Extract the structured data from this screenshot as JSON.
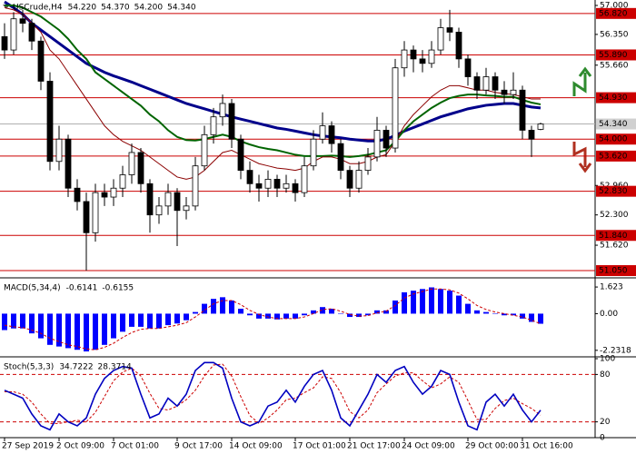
{
  "chart_data": [
    {
      "type": "candlestick",
      "title": "USCrude,H4",
      "readouts": [
        {
          "value": 54.22,
          "label": "54.220"
        },
        {
          "value": 54.37,
          "label": "54.370"
        },
        {
          "value": 54.2,
          "label": "54.200"
        },
        {
          "value": 54.34,
          "label": "54.340"
        }
      ],
      "categories": [
        "27 Sep 2019",
        null,
        null,
        null,
        null,
        null,
        "2 Oct 09:00",
        null,
        null,
        null,
        null,
        null,
        "7 Oct 01:00",
        null,
        null,
        null,
        null,
        null,
        null,
        "9 Oct 17:00",
        null,
        null,
        null,
        null,
        null,
        "14 Oct 09:00",
        null,
        null,
        null,
        null,
        null,
        null,
        "17 Oct 01:00",
        null,
        null,
        null,
        null,
        null,
        "21 Oct 17:00",
        null,
        null,
        null,
        null,
        null,
        "24 Oct 09:00",
        null,
        null,
        null,
        null,
        null,
        null,
        "29 Oct 00:00",
        null,
        null,
        null,
        null,
        null,
        "31 Oct 16:00",
        null,
        null
      ],
      "open": [
        56.3,
        56.0,
        56.7,
        56.6,
        56.2,
        55.3,
        53.5,
        54.0,
        52.9,
        52.6,
        51.9,
        52.8,
        52.7,
        52.9,
        53.2,
        53.7,
        53.0,
        52.3,
        52.5,
        52.8,
        52.4,
        52.5,
        53.4,
        54.1,
        54.5,
        54.8,
        54.0,
        53.3,
        53.0,
        52.9,
        53.1,
        52.9,
        53.0,
        52.8,
        53.4,
        54.0,
        54.3,
        53.9,
        53.3,
        52.9,
        53.3,
        53.6,
        54.2,
        53.8,
        55.6,
        56.0,
        55.8,
        55.7,
        56.0,
        56.5,
        56.4,
        55.8,
        55.4,
        55.1,
        55.4,
        55.1,
        55.0,
        55.1,
        54.2,
        54.22
      ],
      "high": [
        56.6,
        56.85,
        56.9,
        56.7,
        56.3,
        55.5,
        54.3,
        54.1,
        53.1,
        52.8,
        53.0,
        53.0,
        53.1,
        53.4,
        53.9,
        53.8,
        53.1,
        52.7,
        53.0,
        52.9,
        52.7,
        53.6,
        54.3,
        54.7,
        55.0,
        54.9,
        54.1,
        53.5,
        53.2,
        53.3,
        53.2,
        53.2,
        53.1,
        53.6,
        54.2,
        54.6,
        54.4,
        54.0,
        53.4,
        53.5,
        53.8,
        54.5,
        54.3,
        55.8,
        56.2,
        56.1,
        56.0,
        56.2,
        56.7,
        56.9,
        56.5,
        55.9,
        55.5,
        55.6,
        55.5,
        55.3,
        55.5,
        55.2,
        54.3,
        54.37
      ],
      "low": [
        55.8,
        55.9,
        56.4,
        56.0,
        55.1,
        53.3,
        53.3,
        52.7,
        52.4,
        51.05,
        51.7,
        52.5,
        52.5,
        52.7,
        53.0,
        52.8,
        51.9,
        52.1,
        52.3,
        51.6,
        52.2,
        52.4,
        53.3,
        53.9,
        54.3,
        53.8,
        53.1,
        52.8,
        52.6,
        52.7,
        52.7,
        52.8,
        52.6,
        52.7,
        53.3,
        53.9,
        53.7,
        53.1,
        52.7,
        52.8,
        53.2,
        53.5,
        53.6,
        53.7,
        55.4,
        55.5,
        55.5,
        55.6,
        55.9,
        56.2,
        55.6,
        55.2,
        54.9,
        55.0,
        54.9,
        54.8,
        54.9,
        54.0,
        53.6,
        54.2
      ],
      "close": [
        56.0,
        56.7,
        56.6,
        56.2,
        55.3,
        53.5,
        54.0,
        52.9,
        52.6,
        51.9,
        52.8,
        52.7,
        52.9,
        53.2,
        53.7,
        53.0,
        52.3,
        52.5,
        52.8,
        52.4,
        52.5,
        53.4,
        54.1,
        54.5,
        54.8,
        54.0,
        53.3,
        53.0,
        52.9,
        53.1,
        52.9,
        53.0,
        52.8,
        53.4,
        54.0,
        54.3,
        53.9,
        53.3,
        52.9,
        53.3,
        53.6,
        54.2,
        53.8,
        55.6,
        56.0,
        55.8,
        55.7,
        56.0,
        56.5,
        56.4,
        55.8,
        55.4,
        55.1,
        55.4,
        55.1,
        55.0,
        55.1,
        54.2,
        54.0,
        54.34
      ],
      "lines": [
        {
          "color": "#00008b",
          "width": 3,
          "values": [
            57.08,
            56.95,
            56.8,
            56.6,
            56.45,
            56.3,
            56.15,
            56.0,
            55.85,
            55.7,
            55.6,
            55.5,
            55.42,
            55.35,
            55.28,
            55.2,
            55.12,
            55.04,
            54.96,
            54.88,
            54.8,
            54.74,
            54.68,
            54.62,
            54.56,
            54.5,
            54.45,
            54.4,
            54.35,
            54.3,
            54.25,
            54.22,
            54.18,
            54.14,
            54.1,
            54.07,
            54.05,
            54.03,
            54.0,
            53.98,
            53.96,
            53.96,
            54.0,
            54.08,
            54.18,
            54.26,
            54.34,
            54.42,
            54.5,
            54.56,
            54.62,
            54.68,
            54.72,
            54.76,
            54.78,
            54.8,
            54.8,
            54.76,
            54.72,
            54.7
          ]
        },
        {
          "color": "#006400",
          "width": 2,
          "values": [
            57.0,
            57.0,
            56.95,
            56.85,
            56.75,
            56.6,
            56.45,
            56.25,
            56.0,
            55.8,
            55.5,
            55.35,
            55.2,
            55.05,
            54.9,
            54.75,
            54.55,
            54.4,
            54.2,
            54.05,
            53.98,
            53.97,
            54.0,
            54.05,
            54.1,
            54.05,
            53.95,
            53.88,
            53.82,
            53.78,
            53.75,
            53.7,
            53.65,
            53.62,
            53.62,
            53.62,
            53.63,
            53.62,
            53.6,
            53.62,
            53.65,
            53.7,
            53.75,
            53.95,
            54.2,
            54.4,
            54.55,
            54.7,
            54.82,
            54.92,
            54.97,
            55.0,
            55.0,
            54.98,
            54.97,
            54.95,
            54.95,
            54.88,
            54.82,
            54.78
          ]
        },
        {
          "color": "#8b0000",
          "width": 1,
          "values": [
            56.95,
            56.9,
            56.8,
            56.6,
            56.4,
            56.0,
            55.8,
            55.5,
            55.2,
            54.9,
            54.6,
            54.3,
            54.1,
            53.95,
            53.85,
            53.75,
            53.6,
            53.45,
            53.3,
            53.15,
            53.1,
            53.15,
            53.3,
            53.5,
            53.7,
            53.75,
            53.65,
            53.55,
            53.45,
            53.4,
            53.35,
            53.33,
            53.3,
            53.35,
            53.5,
            53.6,
            53.6,
            53.55,
            53.45,
            53.45,
            53.5,
            53.6,
            53.65,
            53.95,
            54.3,
            54.55,
            54.75,
            54.95,
            55.1,
            55.2,
            55.2,
            55.15,
            55.1,
            55.1,
            55.05,
            55.02,
            55.0,
            54.95,
            54.9,
            54.9
          ]
        }
      ],
      "levels": [
        {
          "value": 56.82,
          "label": "56.820"
        },
        {
          "value": 55.89,
          "label": "55.890"
        },
        {
          "value": 54.93,
          "label": "54.930"
        },
        {
          "value": 54.0,
          "label": "54.000"
        },
        {
          "value": 53.62,
          "label": "53.620"
        },
        {
          "value": 52.83,
          "label": "52.830"
        },
        {
          "value": 51.84,
          "label": "51.840"
        },
        {
          "value": 51.05,
          "label": "51.050"
        }
      ],
      "level_color": "#cc0000",
      "current": {
        "value": 54.34,
        "label": "54.340"
      },
      "ylim": [
        50.908,
        57.122
      ],
      "yticks": [
        {
          "value": 57,
          "label": "57.000"
        },
        {
          "value": 56.35,
          "label": "56.350"
        },
        {
          "value": 55.66,
          "label": "55.660"
        },
        {
          "value": 52.96,
          "label": "52.960"
        },
        {
          "value": 52.3,
          "label": "52.300"
        },
        {
          "value": 51.62,
          "label": "51.620"
        }
      ]
    },
    {
      "type": "macd",
      "title": "MACD(5,34,4)",
      "readouts": [
        -0.6141,
        -0.6155
      ],
      "color": "#0000ff",
      "signal_color": "#cc0000",
      "values": [
        -1.0,
        -0.9,
        -0.9,
        -1.2,
        -1.5,
        -1.9,
        -2.0,
        -2.1,
        -2.2,
        -2.3,
        -2.2,
        -1.9,
        -1.5,
        -1.1,
        -0.8,
        -0.8,
        -0.9,
        -0.9,
        -0.7,
        -0.6,
        -0.4,
        0.1,
        0.6,
        0.9,
        1.0,
        0.8,
        0.3,
        -0.1,
        -0.3,
        -0.3,
        -0.35,
        -0.3,
        -0.3,
        -0.1,
        0.2,
        0.4,
        0.3,
        0.0,
        -0.2,
        -0.2,
        -0.1,
        0.2,
        0.2,
        0.8,
        1.3,
        1.4,
        1.5,
        1.6,
        1.5,
        1.4,
        1.1,
        0.6,
        0.2,
        0.1,
        0.0,
        -0.1,
        -0.1,
        -0.3,
        -0.5,
        -0.6141
      ],
      "signal": [
        -0.7,
        -0.8,
        -0.85,
        -1.0,
        -1.2,
        -1.5,
        -1.7,
        -1.9,
        -2.0,
        -2.15,
        -2.2,
        -2.05,
        -1.8,
        -1.45,
        -1.15,
        -0.95,
        -0.9,
        -0.9,
        -0.8,
        -0.7,
        -0.55,
        -0.2,
        0.2,
        0.6,
        0.8,
        0.8,
        0.55,
        0.2,
        -0.05,
        -0.2,
        -0.3,
        -0.3,
        -0.3,
        -0.2,
        0.0,
        0.25,
        0.3,
        0.15,
        -0.05,
        -0.15,
        -0.12,
        0.05,
        0.15,
        0.5,
        0.95,
        1.2,
        1.35,
        1.5,
        1.5,
        1.45,
        1.25,
        0.9,
        0.5,
        0.25,
        0.1,
        0.0,
        -0.1,
        -0.2,
        -0.4,
        -0.6155
      ],
      "ylim": [
        -2.574,
        2.07
      ],
      "yticks": [
        1.623,
        {
          "value": 0,
          "label": "0.00"
        },
        -2.2318
      ]
    },
    {
      "type": "stochastic",
      "title": "Stoch(5,3,3)",
      "readouts": [
        34.7222,
        28.3714
      ],
      "color": "#0000c0",
      "signal_color": "#cc0000",
      "values": [
        60,
        55,
        50,
        30,
        15,
        10,
        30,
        20,
        15,
        25,
        55,
        75,
        85,
        90,
        88,
        55,
        25,
        30,
        50,
        40,
        55,
        85,
        95,
        95,
        88,
        50,
        20,
        15,
        20,
        40,
        45,
        60,
        45,
        65,
        80,
        85,
        60,
        25,
        15,
        35,
        55,
        80,
        70,
        85,
        90,
        70,
        55,
        65,
        85,
        80,
        45,
        15,
        10,
        45,
        55,
        40,
        55,
        35,
        20,
        34.72
      ],
      "signal": [
        58,
        58,
        55,
        45,
        30,
        18,
        18,
        20,
        22,
        20,
        32,
        52,
        72,
        83,
        88,
        78,
        56,
        37,
        35,
        40,
        48,
        60,
        78,
        92,
        93,
        78,
        52,
        28,
        18,
        25,
        35,
        48,
        50,
        57,
        63,
        77,
        75,
        57,
        33,
        25,
        35,
        57,
        68,
        78,
        82,
        82,
        72,
        63,
        68,
        77,
        70,
        47,
        23,
        23,
        37,
        47,
        50,
        43,
        37,
        28.37
      ],
      "levels": [
        80,
        20
      ],
      "ylim": [
        0,
        100
      ],
      "yticks": [
        100,
        80,
        20,
        0
      ]
    }
  ]
}
